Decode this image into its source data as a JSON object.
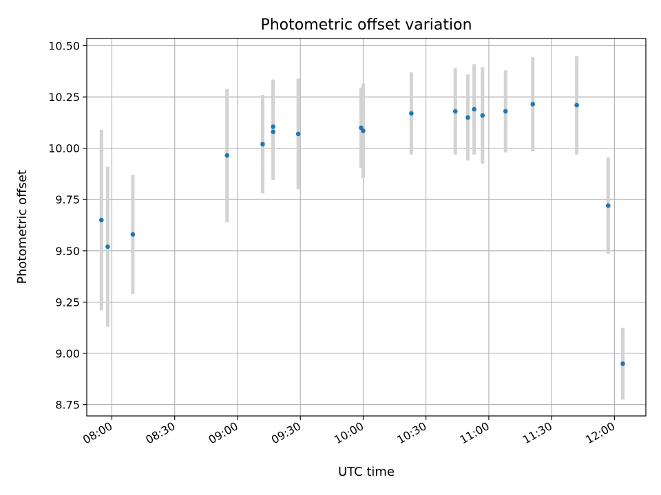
{
  "chart_data": {
    "type": "scatter",
    "title": "Photometric offset variation",
    "xlabel": "UTC time",
    "ylabel": "Photometric offset",
    "x_axis_type": "time",
    "x_range": [
      "07:48",
      "12:15"
    ],
    "x_ticks": [
      "08:00",
      "08:30",
      "09:00",
      "09:30",
      "10:00",
      "10:30",
      "11:00",
      "11:30",
      "12:00"
    ],
    "y_range": [
      8.695,
      10.535
    ],
    "y_ticks": [
      8.75,
      9.0,
      9.25,
      9.5,
      9.75,
      10.0,
      10.25,
      10.5
    ],
    "y_tick_labels": [
      "8.75",
      "9.00",
      "9.25",
      "9.50",
      "9.75",
      "10.00",
      "10.25",
      "10.50"
    ],
    "grid": true,
    "point_color": "#1f77b4",
    "errorbar_color": "#d3d3d3",
    "series": [
      {
        "points": [
          {
            "x": "07:55",
            "y": 9.65,
            "err": 0.44
          },
          {
            "x": "07:58",
            "y": 9.52,
            "err": 0.39
          },
          {
            "x": "08:10",
            "y": 9.58,
            "err": 0.29
          },
          {
            "x": "08:55",
            "y": 9.965,
            "err": 0.325
          },
          {
            "x": "09:12",
            "y": 10.02,
            "err": 0.24
          },
          {
            "x": "09:17",
            "y": 10.08,
            "err": 0.235
          },
          {
            "x": "09:17",
            "y": 10.105,
            "err": 0.23
          },
          {
            "x": "09:29",
            "y": 10.07,
            "err": 0.27
          },
          {
            "x": "09:59",
            "y": 10.1,
            "err": 0.195
          },
          {
            "x": "10:00",
            "y": 10.085,
            "err": 0.23
          },
          {
            "x": "10:23",
            "y": 10.17,
            "err": 0.2
          },
          {
            "x": "10:44",
            "y": 10.18,
            "err": 0.21
          },
          {
            "x": "10:50",
            "y": 10.15,
            "err": 0.21
          },
          {
            "x": "10:53",
            "y": 10.19,
            "err": 0.22
          },
          {
            "x": "10:57",
            "y": 10.16,
            "err": 0.235
          },
          {
            "x": "11:08",
            "y": 10.18,
            "err": 0.2
          },
          {
            "x": "11:21",
            "y": 10.215,
            "err": 0.23
          },
          {
            "x": "11:42",
            "y": 10.21,
            "err": 0.24
          },
          {
            "x": "11:57",
            "y": 9.72,
            "err": 0.235
          },
          {
            "x": "12:04",
            "y": 8.95,
            "err": 0.175
          }
        ]
      }
    ]
  }
}
